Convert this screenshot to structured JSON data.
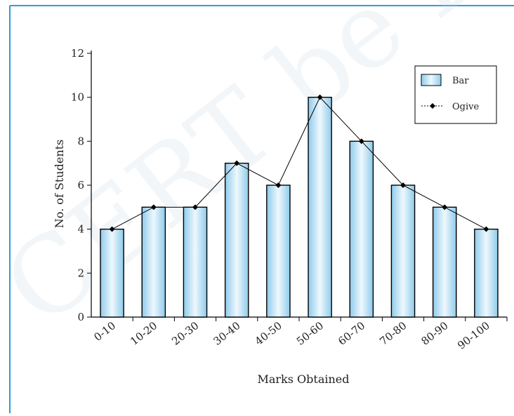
{
  "page": {
    "watermark": "CERT be republished",
    "border_color": "#2aa0d8"
  },
  "chart_data": {
    "type": "bar",
    "title": "",
    "xlabel": "Marks Obtained",
    "ylabel": "No. of Students",
    "categories": [
      "0-10",
      "10-20",
      "20-30",
      "30-40",
      "40-50",
      "50-60",
      "60-70",
      "70-80",
      "80-90",
      "90-100"
    ],
    "series": [
      {
        "name": "Bar",
        "type": "bar",
        "values": [
          4,
          5,
          5,
          7,
          6,
          10,
          8,
          6,
          5,
          4
        ]
      },
      {
        "name": "Ogive",
        "type": "line",
        "values": [
          4,
          5,
          5,
          7,
          6,
          10,
          8,
          6,
          5,
          4
        ]
      }
    ],
    "ylim": [
      0,
      12
    ],
    "yticks": [
      0,
      2,
      4,
      6,
      8,
      10,
      12
    ],
    "grid": false,
    "legend": "top-right",
    "colors": {
      "bar_fill": "#9fd3ef",
      "bar_edge": "#000000",
      "line": "#000000"
    }
  }
}
